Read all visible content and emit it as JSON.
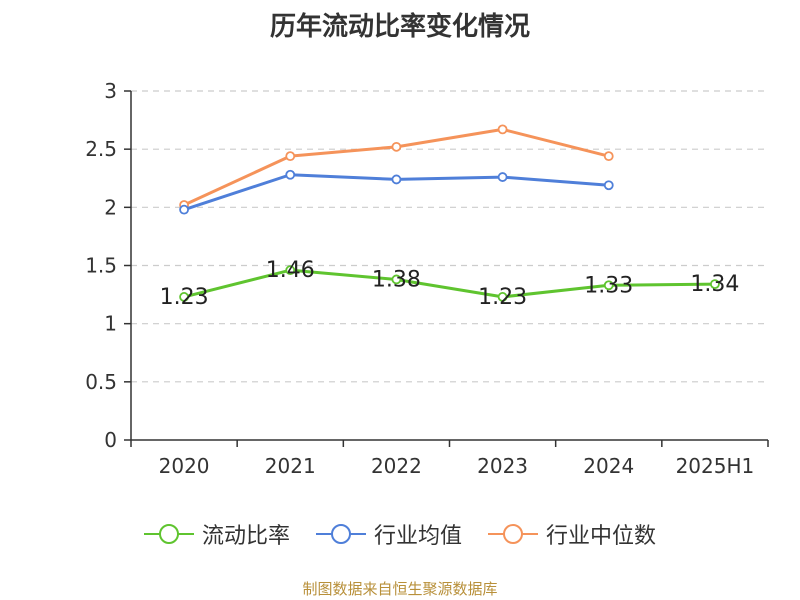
{
  "title": "历年流动比率变化情况",
  "source_text": "制图数据来自恒生聚源数据库",
  "chart_data": {
    "type": "line",
    "categories": [
      "2020",
      "2021",
      "2022",
      "2023",
      "2024",
      "2025H1"
    ],
    "ylim": [
      0,
      3
    ],
    "yticks": [
      0,
      0.5,
      1,
      1.5,
      2,
      2.5,
      3
    ],
    "ytick_labels": [
      "0",
      "0.5",
      "1",
      "1.5",
      "2",
      "2.5",
      "3"
    ],
    "grid": true,
    "legend_position": "bottom",
    "series": [
      {
        "name": "流动比率",
        "color": "#5fc42f",
        "values": [
          1.23,
          1.46,
          1.38,
          1.23,
          1.33,
          1.34
        ],
        "labels": [
          "1.23",
          "1.46",
          "1.38",
          "1.23",
          "1.33",
          "1.34"
        ],
        "show_labels": true
      },
      {
        "name": "行业均值",
        "color": "#4f7fd9",
        "values": [
          1.98,
          2.28,
          2.24,
          2.26,
          2.19,
          null
        ],
        "show_labels": false
      },
      {
        "name": "行业中位数",
        "color": "#f5935a",
        "values": [
          2.02,
          2.44,
          2.52,
          2.67,
          2.44,
          null
        ],
        "show_labels": false
      }
    ]
  }
}
